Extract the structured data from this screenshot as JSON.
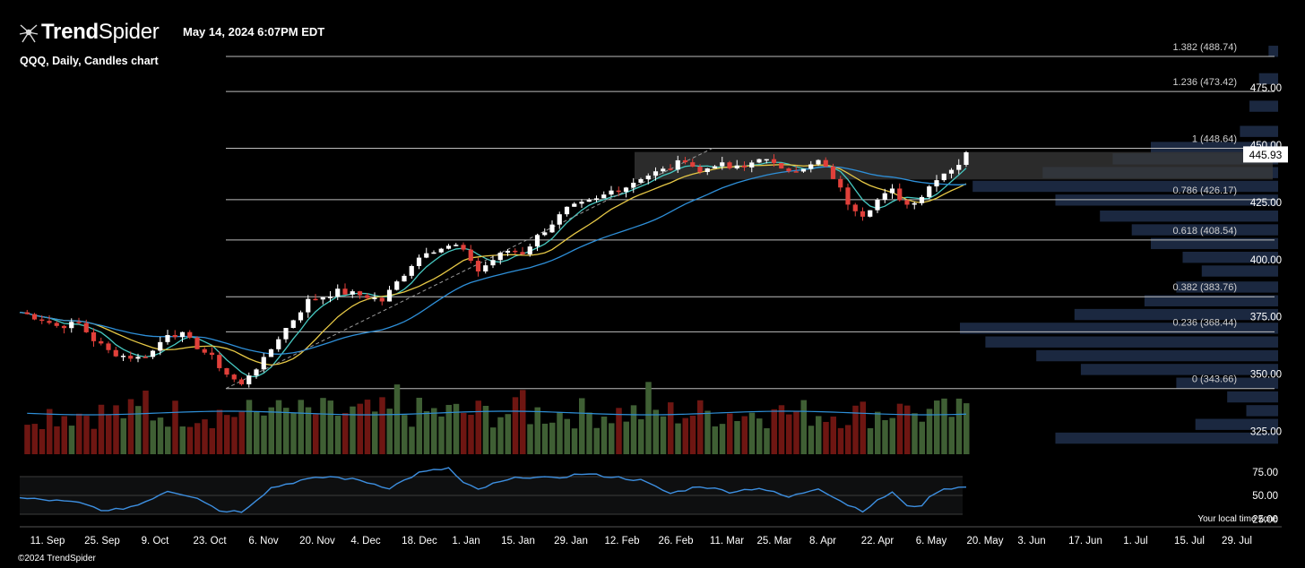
{
  "brand": {
    "name_bold": "Trend",
    "name_light": "Spider",
    "copyright": "©2024 TrendSpider"
  },
  "header": {
    "timestamp": "May 14, 2024 6:07PM EDT",
    "subtitle": "QQQ, Daily, Candles chart"
  },
  "footer": {
    "timezone_note": "Your local time zone"
  },
  "colors": {
    "up": "#ffffff",
    "down": "#e0403a",
    "vol_up": "#3f5f34",
    "vol_down": "#6e1612",
    "ema_fast": "#46c8c1",
    "ema_mid": "#e6c846",
    "sma_slow": "#2e8fd8",
    "rsi": "#3d8fe0",
    "vp": "#1b2840",
    "zone": "#3a3a3a",
    "fib": "#bdbdbd"
  },
  "chart_data": {
    "type": "candlestick",
    "symbol": "QQQ",
    "timeframe": "Daily",
    "last_price": 445.93,
    "ylim": [
      320,
      495
    ],
    "y_ticks": [
      325,
      350,
      375,
      400,
      425,
      450,
      475
    ],
    "x_ticks": [
      "11. Sep",
      "25. Sep",
      "9. Oct",
      "23. Oct",
      "6. Nov",
      "20. Nov",
      "4. Dec",
      "18. Dec",
      "1. Jan",
      "15. Jan",
      "29. Jan",
      "12. Feb",
      "26. Feb",
      "11. Mar",
      "25. Mar",
      "8. Apr",
      "22. Apr",
      "6. May",
      "20. May",
      "3. Jun",
      "17. Jun",
      "1. Jul",
      "15. Jul",
      "29. Jul"
    ],
    "fibonacci": [
      {
        "ratio": "1.382",
        "price": 488.74
      },
      {
        "ratio": "1.236",
        "price": 473.42
      },
      {
        "ratio": "1",
        "price": 448.64
      },
      {
        "ratio": "0.786",
        "price": 426.17
      },
      {
        "ratio": "0.618",
        "price": 408.54
      },
      {
        "ratio": "0.382",
        "price": 383.76
      },
      {
        "ratio": "0.236",
        "price": 368.44
      },
      {
        "ratio": "0",
        "price": 343.66
      }
    ],
    "zone": {
      "from": "12. Feb",
      "to": "20. May",
      "low": 435,
      "high": 447
    },
    "close_path": [
      [
        0,
        377
      ],
      [
        3,
        374
      ],
      [
        5,
        371
      ],
      [
        8,
        372
      ],
      [
        10,
        365
      ],
      [
        12,
        360
      ],
      [
        14,
        358
      ],
      [
        16,
        357
      ],
      [
        18,
        360
      ],
      [
        20,
        368
      ],
      [
        22,
        367
      ],
      [
        24,
        362
      ],
      [
        26,
        357
      ],
      [
        28,
        350
      ],
      [
        30,
        345
      ],
      [
        31,
        350
      ],
      [
        33,
        356
      ],
      [
        35,
        366
      ],
      [
        37,
        374
      ],
      [
        39,
        382
      ],
      [
        41,
        384
      ],
      [
        43,
        386
      ],
      [
        45,
        385
      ],
      [
        47,
        384
      ],
      [
        49,
        382
      ],
      [
        51,
        390
      ],
      [
        53,
        398
      ],
      [
        55,
        404
      ],
      [
        57,
        405
      ],
      [
        59,
        406
      ],
      [
        61,
        400
      ],
      [
        62,
        395
      ],
      [
        64,
        400
      ],
      [
        66,
        404
      ],
      [
        68,
        403
      ],
      [
        70,
        410
      ],
      [
        72,
        416
      ],
      [
        74,
        422
      ],
      [
        76,
        424
      ],
      [
        78,
        426
      ],
      [
        80,
        430
      ],
      [
        82,
        432
      ],
      [
        84,
        436
      ],
      [
        86,
        438
      ],
      [
        88,
        440
      ],
      [
        90,
        444
      ],
      [
        92,
        438
      ],
      [
        94,
        442
      ],
      [
        96,
        440
      ],
      [
        98,
        440
      ],
      [
        100,
        445
      ],
      [
        102,
        441
      ],
      [
        104,
        440
      ],
      [
        106,
        439
      ],
      [
        108,
        443
      ],
      [
        110,
        436
      ],
      [
        112,
        425
      ],
      [
        114,
        420
      ],
      [
        116,
        426
      ],
      [
        118,
        430
      ],
      [
        120,
        424
      ],
      [
        122,
        428
      ],
      [
        124,
        436
      ],
      [
        126,
        440
      ],
      [
        127,
        442
      ],
      [
        128,
        446
      ]
    ],
    "volume_profile": [
      {
        "price": 491,
        "width": 0.03
      },
      {
        "price": 479,
        "width": 0.06
      },
      {
        "price": 467,
        "width": 0.09
      },
      {
        "price": 456,
        "width": 0.12
      },
      {
        "price": 449,
        "width": 0.4
      },
      {
        "price": 444,
        "width": 0.52
      },
      {
        "price": 438,
        "width": 0.74
      },
      {
        "price": 432,
        "width": 0.96
      },
      {
        "price": 426,
        "width": 0.7
      },
      {
        "price": 419,
        "width": 0.56
      },
      {
        "price": 413,
        "width": 0.46
      },
      {
        "price": 407,
        "width": 0.4
      },
      {
        "price": 401,
        "width": 0.3
      },
      {
        "price": 395,
        "width": 0.24
      },
      {
        "price": 388,
        "width": 0.32
      },
      {
        "price": 382,
        "width": 0.42
      },
      {
        "price": 376,
        "width": 0.64
      },
      {
        "price": 370,
        "width": 1.0
      },
      {
        "price": 364,
        "width": 0.92
      },
      {
        "price": 358,
        "width": 0.76
      },
      {
        "price": 352,
        "width": 0.62
      },
      {
        "price": 346,
        "width": 0.32
      },
      {
        "price": 340,
        "width": 0.16
      },
      {
        "price": 334,
        "width": 0.1
      },
      {
        "price": 328,
        "width": 0.26
      },
      {
        "price": 322,
        "width": 0.7
      }
    ],
    "rsi": {
      "ylim": [
        20,
        80
      ],
      "y_ticks": [
        75,
        50,
        25
      ],
      "bands": [
        70,
        30
      ],
      "midline": 50,
      "path": [
        [
          0,
          47
        ],
        [
          4,
          45
        ],
        [
          8,
          42
        ],
        [
          12,
          33
        ],
        [
          16,
          40
        ],
        [
          20,
          55
        ],
        [
          24,
          48
        ],
        [
          27,
          34
        ],
        [
          30,
          33
        ],
        [
          34,
          58
        ],
        [
          38,
          66
        ],
        [
          42,
          70
        ],
        [
          46,
          66
        ],
        [
          50,
          58
        ],
        [
          54,
          74
        ],
        [
          58,
          79
        ],
        [
          60,
          63
        ],
        [
          62,
          56
        ],
        [
          64,
          62
        ],
        [
          68,
          70
        ],
        [
          72,
          68
        ],
        [
          76,
          73
        ],
        [
          80,
          70
        ],
        [
          84,
          66
        ],
        [
          88,
          52
        ],
        [
          92,
          60
        ],
        [
          96,
          54
        ],
        [
          100,
          58
        ],
        [
          104,
          48
        ],
        [
          108,
          58
        ],
        [
          112,
          40
        ],
        [
          114,
          34
        ],
        [
          116,
          44
        ],
        [
          118,
          54
        ],
        [
          120,
          38
        ],
        [
          122,
          40
        ],
        [
          124,
          54
        ],
        [
          126,
          58
        ],
        [
          128,
          60
        ]
      ]
    }
  }
}
